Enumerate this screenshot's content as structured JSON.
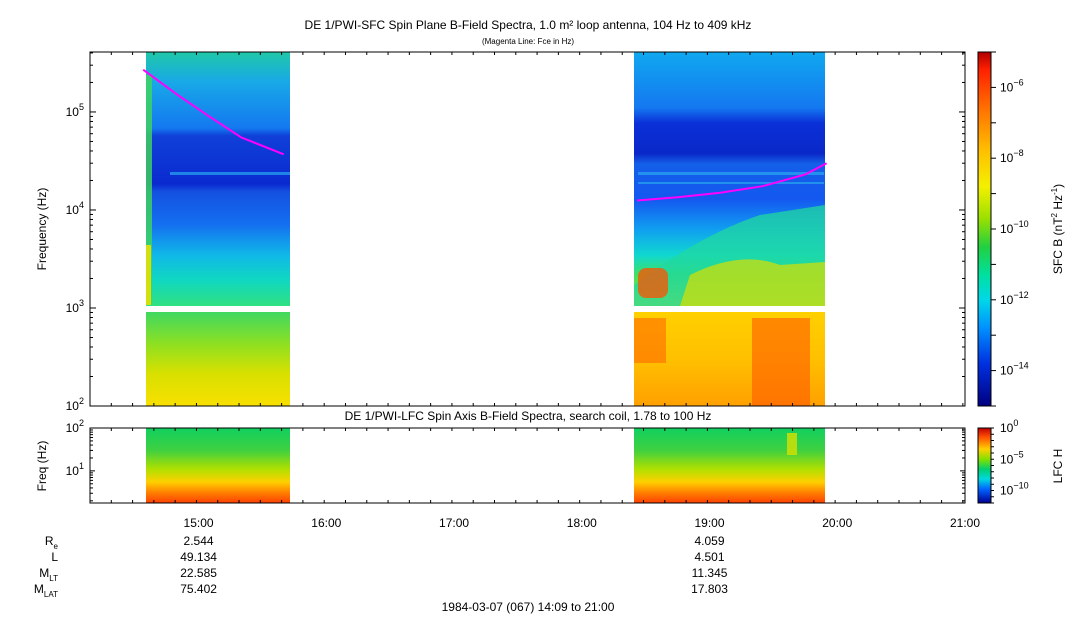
{
  "chart_data": [
    {
      "type": "heatmap",
      "title": "DE 1/PWI-SFC  Spin Plane B-Field Spectra, 1.0 m² loop antenna, 104 Hz to 409 kHz",
      "subtitle": "(Magenta Line: Fce in Hz)",
      "ylabel": "Frequency (Hz)",
      "y_scale": "log",
      "ylim": [
        100,
        409000
      ],
      "y_tick_labels": [
        "10^2",
        "10^3",
        "10^4",
        "10^5"
      ],
      "xlim": [
        "14:09",
        "21:00"
      ],
      "x_tick_labels": [
        "15:00",
        "16:00",
        "17:00",
        "18:00",
        "19:00",
        "20:00",
        "21:00"
      ],
      "colorbar": {
        "label": "SFC B (nT^2 Hz^-1)",
        "scale": "log",
        "range": [
          1e-15,
          1e-05
        ],
        "tick_labels": [
          "10^-6",
          "10^-8",
          "10^-10",
          "10^-12",
          "10^-14"
        ]
      },
      "data_intervals": [
        {
          "start": "14:34",
          "end": "15:42"
        },
        {
          "start": "18:24",
          "end": "19:55"
        }
      ],
      "series": [
        {
          "name": "Fce",
          "color": "#ff00ff",
          "segments": [
            {
              "x": [
                "14:34",
                "14:50",
                "15:05",
                "15:20",
                "15:40"
              ],
              "y": [
                270000,
                150000,
                90000,
                55000,
                37000
              ]
            },
            {
              "x": [
                "18:26",
                "18:45",
                "19:05",
                "19:25",
                "19:45",
                "19:55"
              ],
              "y": [
                12500,
                13500,
                15000,
                17500,
                23000,
                30000
              ]
            }
          ]
        }
      ]
    },
    {
      "type": "heatmap",
      "title": "DE 1/PWI-LFC  Spin Axis B-Field Spectra, search coil, 1.78 to 100 Hz",
      "ylabel": "Freq (Hz)",
      "y_scale": "log",
      "ylim": [
        1.78,
        100
      ],
      "y_tick_labels": [
        "10^1",
        "10^2"
      ],
      "colorbar": {
        "label": "LFC H",
        "scale": "log",
        "range": [
          1e-12,
          1
        ],
        "tick_labels": [
          "10^0",
          "10^-5",
          "10^-10"
        ]
      },
      "data_intervals": [
        {
          "start": "14:34",
          "end": "15:42"
        },
        {
          "start": "18:24",
          "end": "19:55"
        }
      ]
    }
  ],
  "ephemeris": {
    "labels": [
      {
        "main": "R",
        "sub": "e"
      },
      {
        "main": "L",
        "sub": ""
      },
      {
        "main": "M",
        "sub": "LT"
      },
      {
        "main": "M",
        "sub": "LAT"
      }
    ],
    "times": [
      "15:00",
      "19:00"
    ],
    "values": [
      [
        "2.544",
        "4.059"
      ],
      [
        "49.134",
        "4.501"
      ],
      [
        "22.585",
        "11.345"
      ],
      [
        "75.402",
        "17.803"
      ]
    ]
  },
  "footer": "1984-03-07 (067) 14:09 to 21:00",
  "colors": {
    "fce_line": "#ff00ff",
    "frame": "#000000",
    "gap": "#ffffff"
  }
}
